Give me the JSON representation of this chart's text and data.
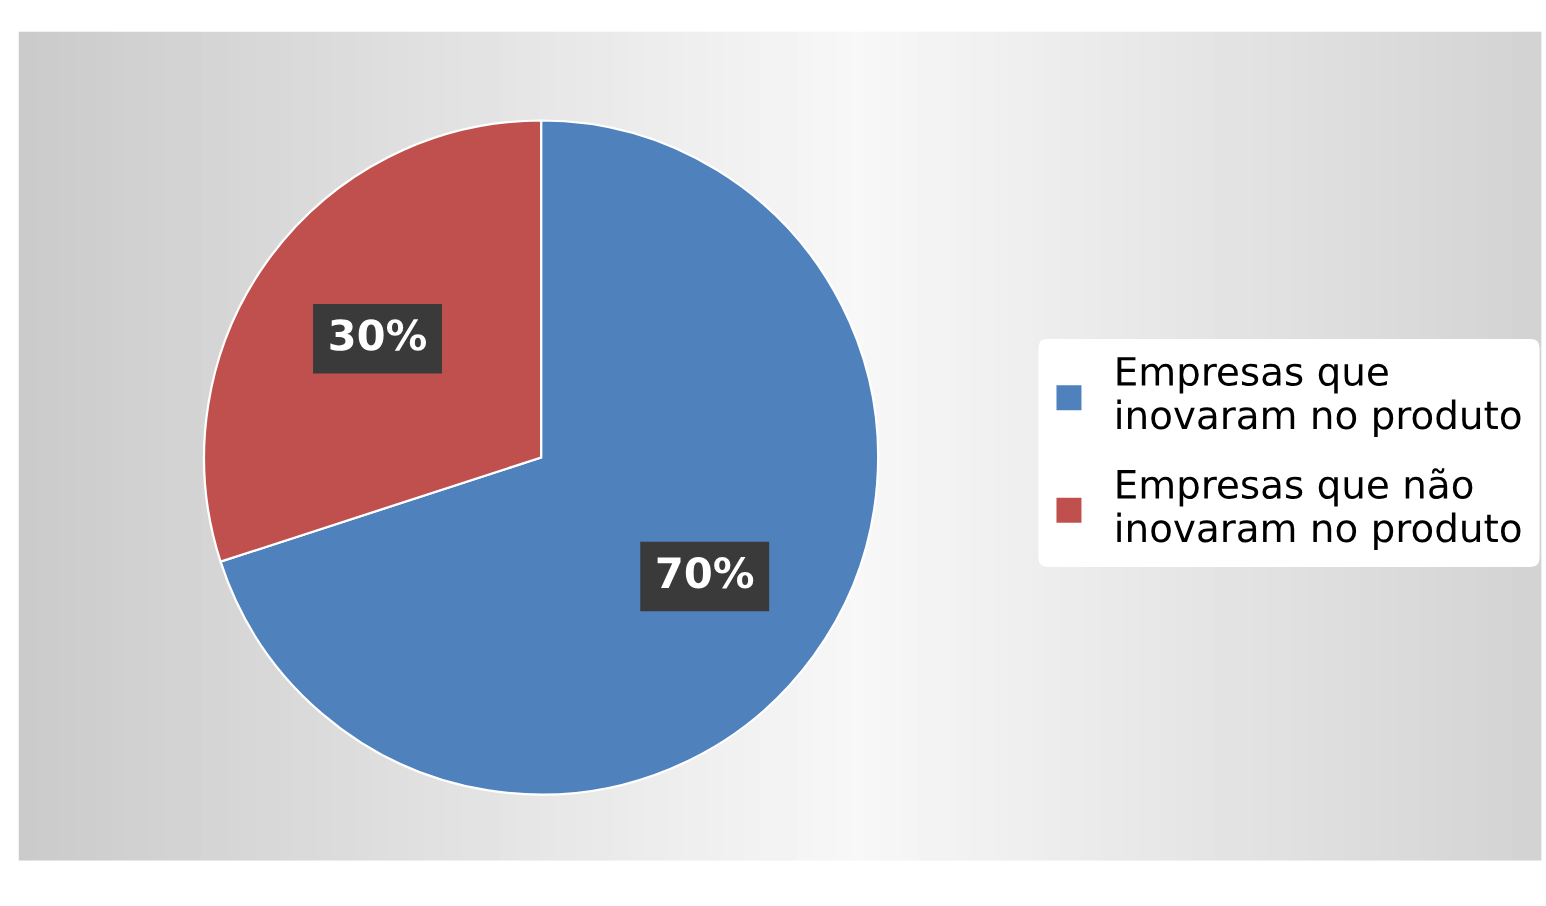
{
  "chart_data": {
    "type": "pie",
    "categories": [
      "Empresas que\ninovaram no produto",
      "Empresas que não\ninovaram no produto"
    ],
    "values": [
      70,
      30
    ],
    "colors": [
      "#4f81bd",
      "#c0504d"
    ],
    "value_labels": [
      "70%",
      "30%"
    ],
    "legend": "right"
  }
}
